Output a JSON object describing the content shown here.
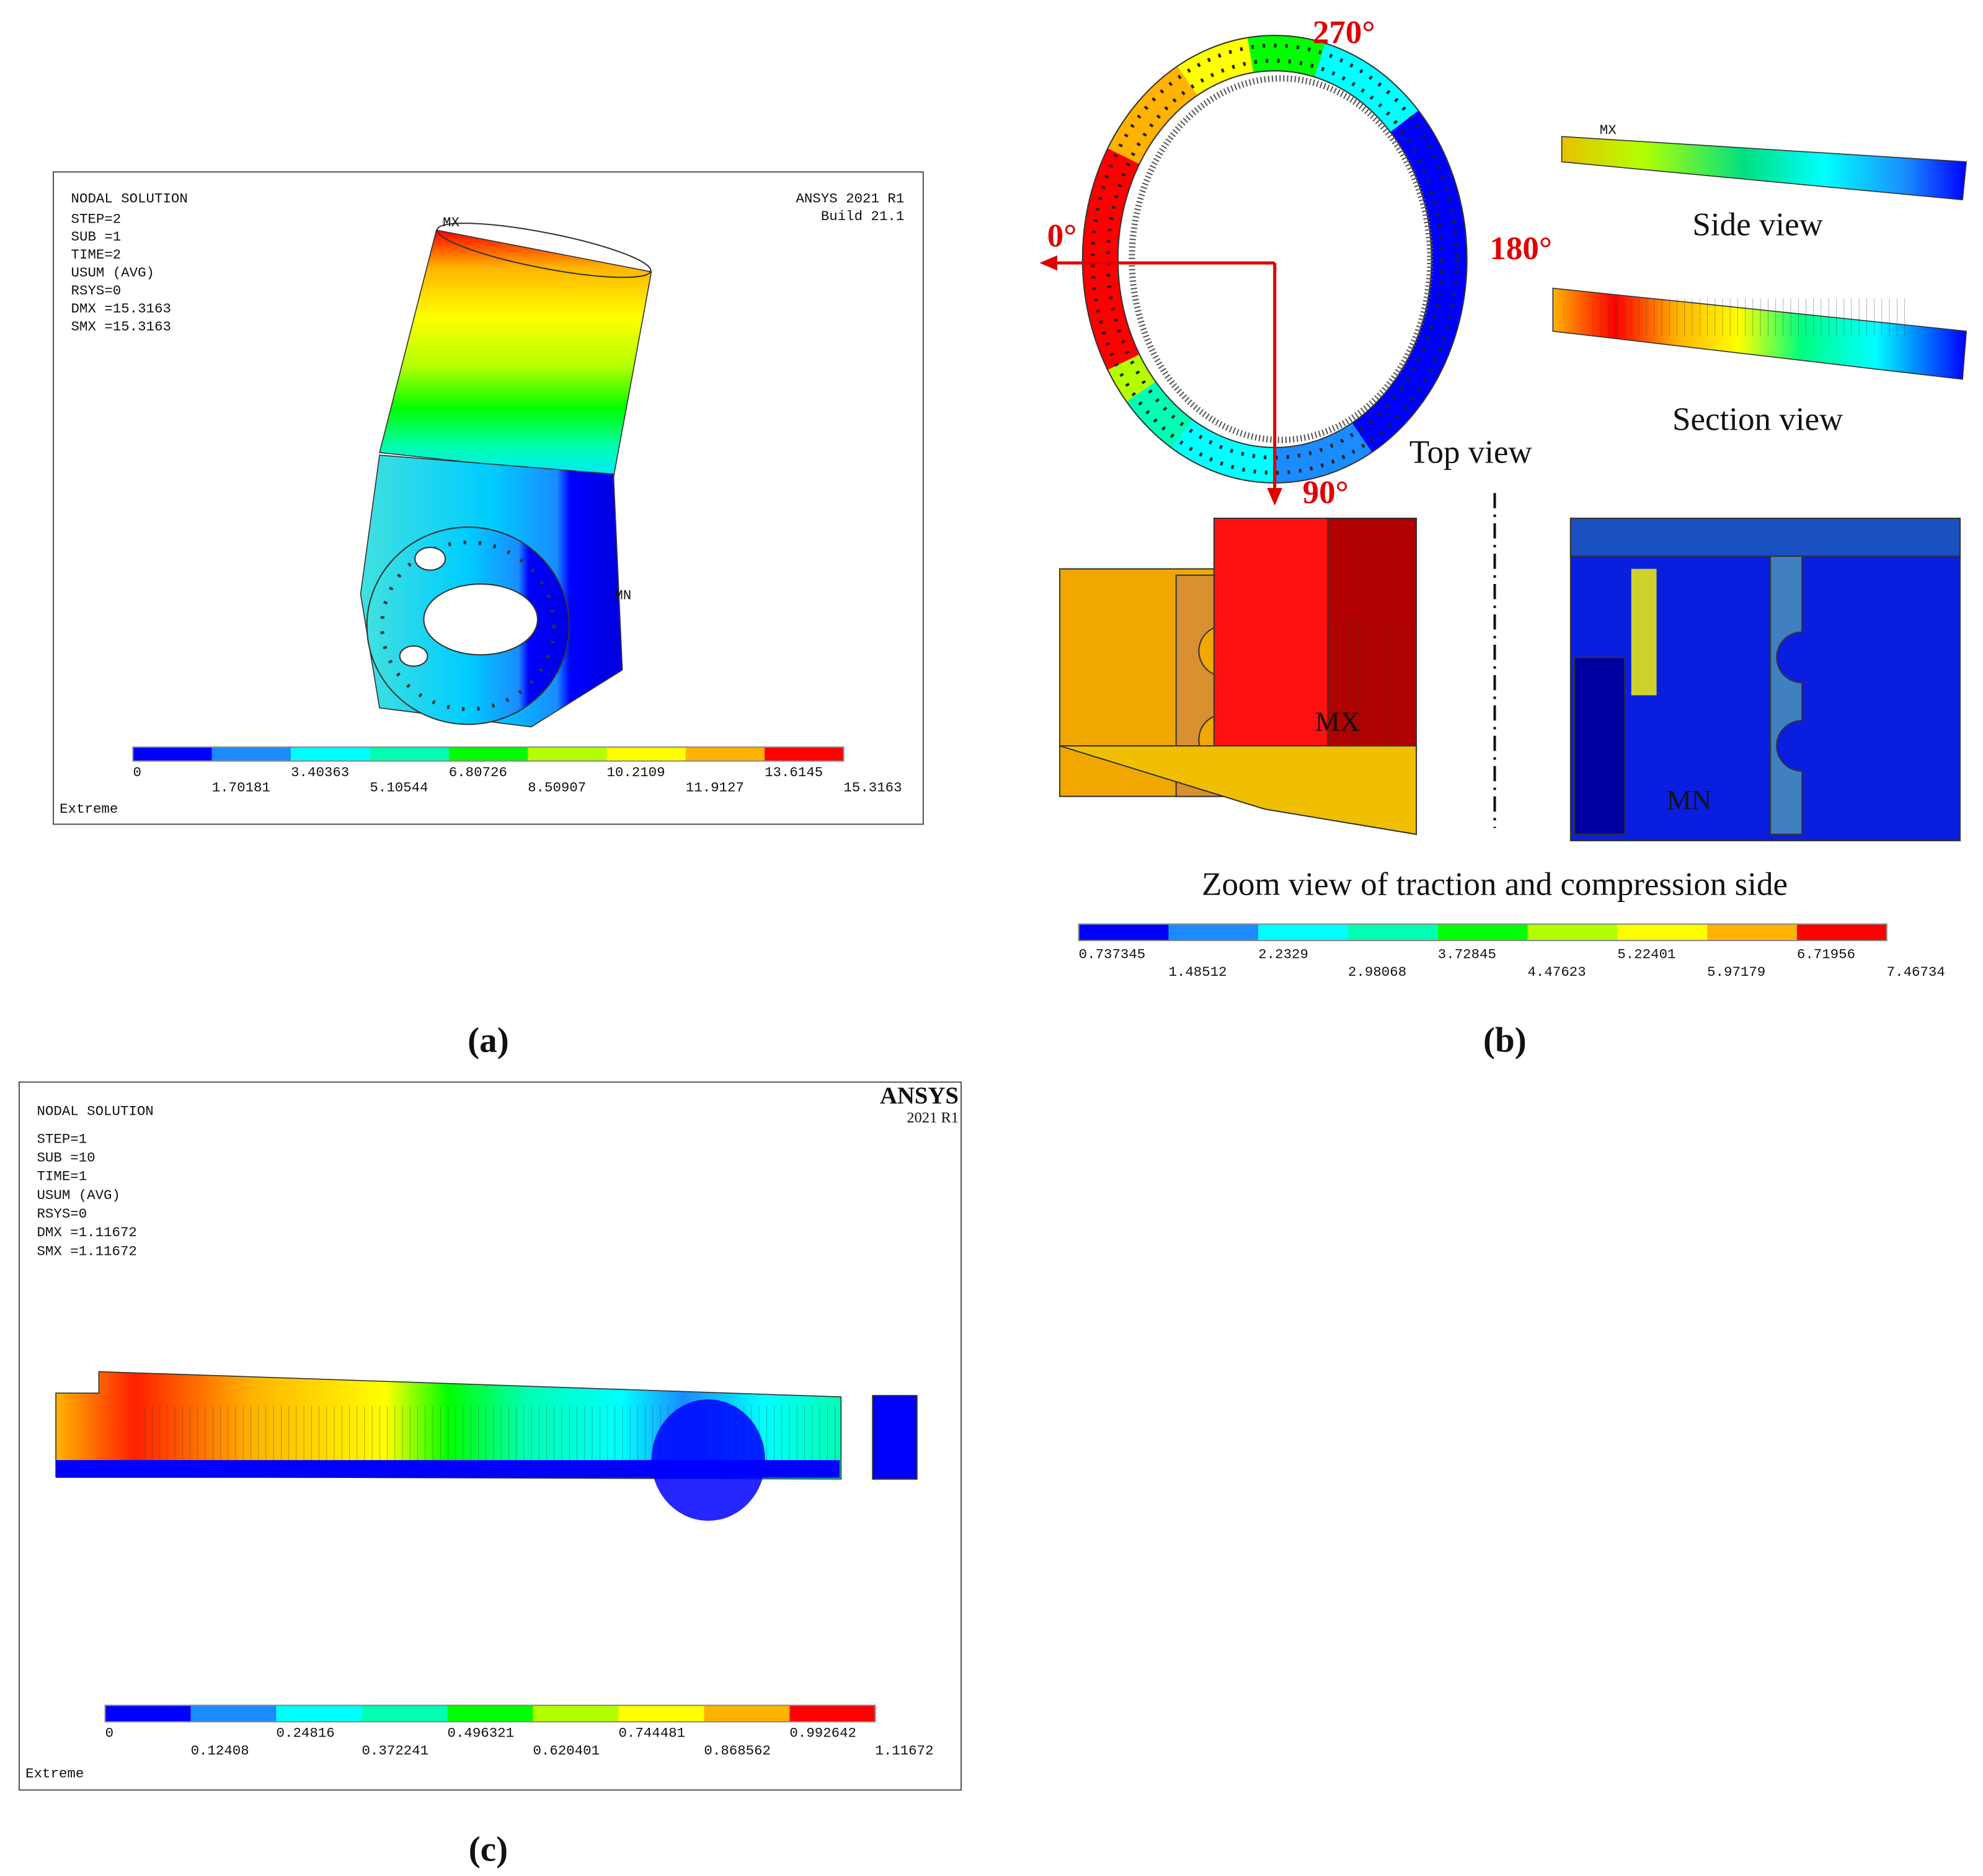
{
  "panel_a": {
    "header": [
      "NODAL SOLUTION",
      "STEP=2",
      "SUB =1",
      "TIME=2",
      "USUM      (AVG)",
      "RSYS=0",
      "DMX =15.3163",
      "SMX =15.3163"
    ],
    "brand": [
      "ANSYS 2021 R1",
      "Build 21.1"
    ],
    "max_marker": "MX",
    "min_marker": "MN",
    "legend_top": [
      "0",
      "3.40363",
      "6.80726",
      "10.2109",
      "13.6145"
    ],
    "legend_bottom": [
      "1.70181",
      "5.10544",
      "8.50907",
      "11.9127",
      "15.3163"
    ],
    "footer": "Extreme",
    "caption": "(a)"
  },
  "panel_b": {
    "angles": [
      "270°",
      "0°",
      "180°",
      "90°"
    ],
    "views": [
      "Top view",
      "Side view",
      "Section view"
    ],
    "side_marker": "MX",
    "max_marker": "MX",
    "min_marker": "MN",
    "zoom_label": "Zoom view of traction and compression side",
    "legend_top": [
      "0.737345",
      "2.2329",
      "3.72845",
      "5.22401",
      "6.71956"
    ],
    "legend_bottom": [
      "1.48512",
      "2.98068",
      "4.47623",
      "5.97179",
      "7.46734"
    ],
    "caption": "(b)"
  },
  "panel_c": {
    "header": [
      "NODAL SOLUTION",
      "STEP=1",
      "SUB =10",
      "TIME=1",
      "USUM      (AVG)",
      "RSYS=0",
      "DMX =1.11672",
      "SMX =1.11672"
    ],
    "brand": [
      "ANSYS",
      "2021 R1"
    ],
    "legend_top": [
      "0",
      "0.24816",
      "0.496321",
      "0.744481",
      "0.992642"
    ],
    "legend_bottom": [
      "0.12408",
      "0.372241",
      "0.620401",
      "0.868562",
      "1.11672"
    ],
    "footer": "Extreme",
    "caption": "(c)"
  }
}
